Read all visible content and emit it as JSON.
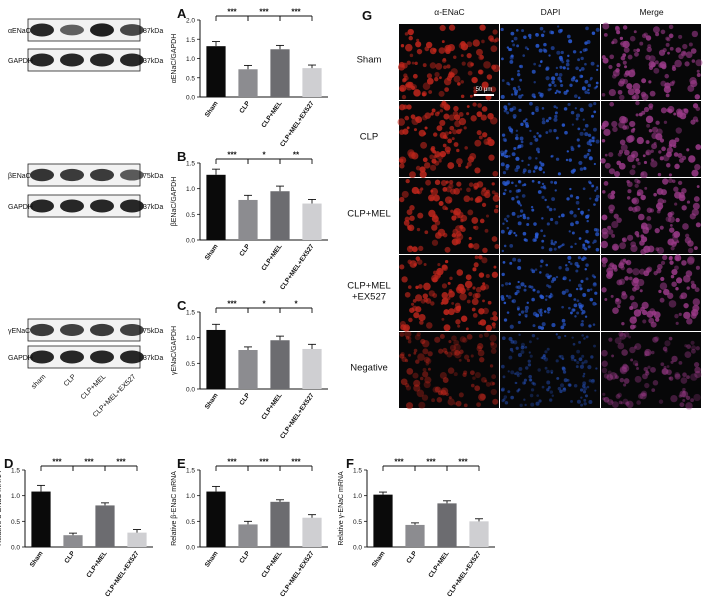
{
  "colors": {
    "bars": [
      "#0a0a0a",
      "#8c8c90",
      "#6c6c70",
      "#cfcfd2"
    ],
    "red_channel": "#c0261c",
    "blue_channel": "#2a5bd6",
    "merge_channel": "#9a3a88"
  },
  "blots": [
    {
      "target": "αENaC",
      "target_kda": "87kDa",
      "loading": "GAPDH",
      "loading_kda": "37kDa"
    },
    {
      "target": "βENaC",
      "target_kda": "75kDa",
      "loading": "GAPDH",
      "loading_kda": "37kDa"
    },
    {
      "target": "γENaC",
      "target_kda": "75kDa",
      "loading": "GAPDH",
      "loading_kda": "37kDa",
      "lane_labels": [
        "sham",
        "CLP",
        "CLP+MEL",
        "CLP+MEL+EX527"
      ]
    }
  ],
  "chart_data": [
    {
      "panel": "A",
      "type": "bar",
      "ylabel": "αENaC/GAPDH",
      "categories": [
        "Sham",
        "CLP",
        "CLP+MEL",
        "CLP+MEL+EX527"
      ],
      "values": [
        1.32,
        0.72,
        1.24,
        0.75
      ],
      "errors": [
        0.12,
        0.1,
        0.1,
        0.08
      ],
      "ylim": [
        0,
        2.0
      ],
      "yticks": [
        "0.0",
        "0.5",
        "1.0",
        "1.5",
        "2.0"
      ],
      "significance": [
        [
          "Sham",
          "CLP",
          "***"
        ],
        [
          "CLP",
          "CLP+MEL",
          "***"
        ],
        [
          "CLP+MEL",
          "CLP+MEL+EX527",
          "***"
        ]
      ]
    },
    {
      "panel": "B",
      "type": "bar",
      "ylabel": "βENaC/GAPDH",
      "categories": [
        "Sham",
        "CLP",
        "CLP+MEL",
        "CLP+MEL+EX527"
      ],
      "values": [
        1.27,
        0.78,
        0.95,
        0.71
      ],
      "errors": [
        0.11,
        0.09,
        0.1,
        0.08
      ],
      "ylim": [
        0,
        1.5
      ],
      "yticks": [
        "0.0",
        "0.5",
        "1.0",
        "1.5"
      ],
      "significance": [
        [
          "Sham",
          "CLP",
          "***"
        ],
        [
          "CLP",
          "CLP+MEL",
          "*"
        ],
        [
          "CLP+MEL",
          "CLP+MEL+EX527",
          "**"
        ]
      ]
    },
    {
      "panel": "C",
      "type": "bar",
      "ylabel": "γENaC/GAPDH",
      "categories": [
        "Sham",
        "CLP",
        "CLP+MEL",
        "CLP+MEL+EX527"
      ],
      "values": [
        1.15,
        0.76,
        0.95,
        0.78
      ],
      "errors": [
        0.11,
        0.06,
        0.08,
        0.09
      ],
      "ylim": [
        0,
        1.5
      ],
      "yticks": [
        "0.0",
        "0.5",
        "1.0",
        "1.5"
      ],
      "significance": [
        [
          "Sham",
          "CLP",
          "***"
        ],
        [
          "CLP",
          "CLP+MEL",
          "*"
        ],
        [
          "CLP+MEL",
          "CLP+MEL+EX527",
          "*"
        ]
      ]
    },
    {
      "panel": "D",
      "type": "bar",
      "ylabel": "Relative α-ENaC mRNA",
      "categories": [
        "Sham",
        "CLP",
        "CLP+MEL",
        "CLP+MEL+EX527"
      ],
      "values": [
        1.08,
        0.23,
        0.81,
        0.28
      ],
      "errors": [
        0.12,
        0.04,
        0.05,
        0.06
      ],
      "ylim": [
        0,
        1.5
      ],
      "yticks": [
        "0.0",
        "0.5",
        "1.0",
        "1.5"
      ],
      "significance": [
        [
          "Sham",
          "CLP",
          "***"
        ],
        [
          "CLP",
          "CLP+MEL",
          "***"
        ],
        [
          "CLP+MEL",
          "CLP+MEL+EX527",
          "***"
        ]
      ]
    },
    {
      "panel": "E",
      "type": "bar",
      "ylabel": "Relative β-ENaC mRNA",
      "categories": [
        "Sham",
        "CLP",
        "CLP+MEL",
        "CLP+MEL+EX527"
      ],
      "values": [
        1.08,
        0.44,
        0.88,
        0.57
      ],
      "errors": [
        0.1,
        0.06,
        0.04,
        0.06
      ],
      "ylim": [
        0,
        1.5
      ],
      "yticks": [
        "0.0",
        "0.5",
        "1.0",
        "1.5"
      ],
      "significance": [
        [
          "Sham",
          "CLP",
          "***"
        ],
        [
          "CLP",
          "CLP+MEL",
          "***"
        ],
        [
          "CLP+MEL",
          "CLP+MEL+EX527",
          "***"
        ]
      ]
    },
    {
      "panel": "F",
      "type": "bar",
      "ylabel": "Relative γ-ENaC mRNA",
      "categories": [
        "Sham",
        "CLP",
        "CLP+MEL",
        "CLP+MEL+EX527"
      ],
      "values": [
        1.02,
        0.43,
        0.85,
        0.5
      ],
      "errors": [
        0.05,
        0.04,
        0.05,
        0.05
      ],
      "ylim": [
        0,
        1.5
      ],
      "yticks": [
        "0.0",
        "0.5",
        "1.0",
        "1.5"
      ],
      "significance": [
        [
          "Sham",
          "CLP",
          "***"
        ],
        [
          "CLP",
          "CLP+MEL",
          "***"
        ],
        [
          "CLP+MEL",
          "CLP+MEL+EX527",
          "***"
        ]
      ]
    }
  ],
  "micrograph": {
    "panel": "G",
    "columns": [
      "α-ENaC",
      "DAPI",
      "Merge"
    ],
    "rows": [
      "Sham",
      "CLP",
      "CLP+MEL",
      "CLP+MEL\n+EX527",
      "Negative"
    ],
    "scale_bar": "50 μm"
  }
}
